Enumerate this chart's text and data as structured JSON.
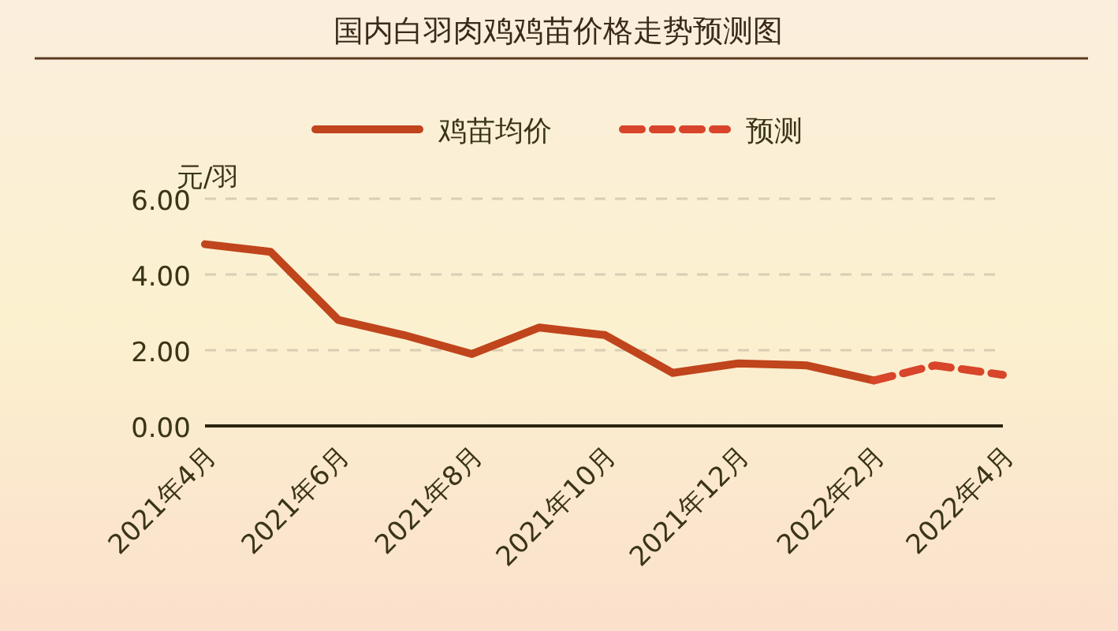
{
  "chart_data": {
    "type": "line",
    "title": "国内白羽肉鸡鸡苗价格走势预测图",
    "ylabel": "元/羽",
    "series": [
      {
        "name": "鸡苗均价",
        "color": "#c0441c",
        "line_style": "solid",
        "x": [
          "2021-04",
          "2021-05",
          "2021-06",
          "2021-07",
          "2021-08",
          "2021-09",
          "2021-10",
          "2021-11",
          "2021-12",
          "2022-01",
          "2022-02"
        ],
        "values": [
          4.8,
          4.6,
          2.8,
          2.4,
          1.9,
          2.6,
          2.4,
          1.4,
          1.65,
          1.6,
          1.2
        ]
      },
      {
        "name": "预测",
        "color": "#d8452a",
        "line_style": "dashed",
        "x": [
          "2022-02",
          "2022-03",
          "2022-04"
        ],
        "values": [
          1.2,
          1.6,
          1.35
        ]
      }
    ],
    "xlim": [
      "2021-04",
      "2022-04"
    ],
    "xticks": [
      {
        "value": "2021-04",
        "label": "2021年4月"
      },
      {
        "value": "2021-06",
        "label": "2021年6月"
      },
      {
        "value": "2021-08",
        "label": "2021年8月"
      },
      {
        "value": "2021-10",
        "label": "2021年10月"
      },
      {
        "value": "2021-12",
        "label": "2021年12月"
      },
      {
        "value": "2022-02",
        "label": "2022年2月"
      },
      {
        "value": "2022-04",
        "label": "2022年4月"
      }
    ],
    "ylim": [
      0,
      6
    ],
    "yticks": [
      {
        "value": 0,
        "label": "0.00"
      },
      {
        "value": 2,
        "label": "2.00"
      },
      {
        "value": 4,
        "label": "4.00"
      },
      {
        "value": 6,
        "label": "6.00"
      }
    ],
    "grid": "y",
    "legend": "top"
  }
}
